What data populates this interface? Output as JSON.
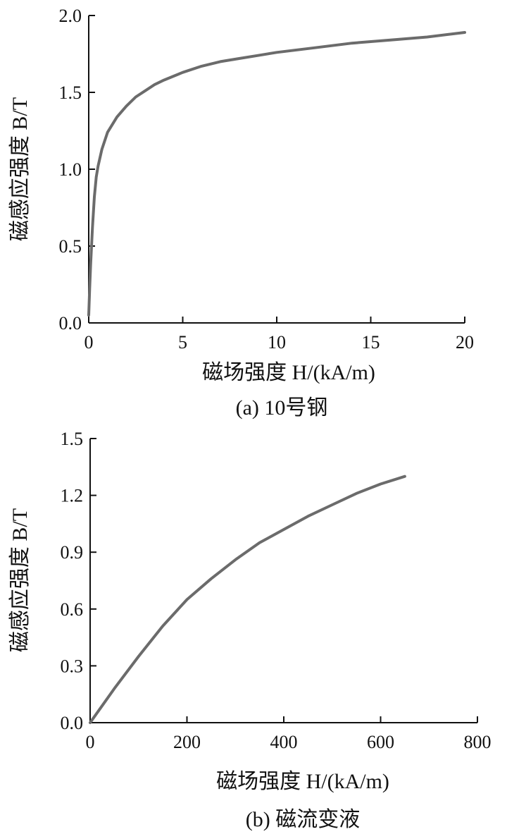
{
  "colors": {
    "curve": "#6b6b6b",
    "axis": "#111111"
  },
  "chart_data": [
    {
      "type": "line",
      "caption": "(a) 10号钢",
      "xlabel": "磁场强度 H/(kA/m)",
      "ylabel": "磁感应强度 B/T",
      "xlim": [
        0,
        20
      ],
      "ylim": [
        0,
        2.0
      ],
      "xticks": [
        "0",
        "5",
        "10",
        "15",
        "20"
      ],
      "yticks": [
        "0.0",
        "0.5",
        "1.0",
        "1.5",
        "2.0"
      ],
      "grid": false,
      "legend": "none",
      "series": [
        {
          "x": [
            0,
            0.05,
            0.1,
            0.2,
            0.3,
            0.4,
            0.5,
            0.7,
            1.0,
            1.5,
            2.0,
            2.5,
            3.0,
            3.5,
            4.0,
            5.0,
            6.0,
            7.0,
            8.0,
            9.0,
            10.0,
            12.0,
            14.0,
            16.0,
            18.0,
            20.0
          ],
          "y": [
            0.05,
            0.22,
            0.38,
            0.62,
            0.82,
            0.95,
            1.02,
            1.13,
            1.24,
            1.34,
            1.41,
            1.47,
            1.51,
            1.55,
            1.58,
            1.63,
            1.67,
            1.7,
            1.72,
            1.74,
            1.76,
            1.79,
            1.82,
            1.84,
            1.86,
            1.89
          ]
        }
      ]
    },
    {
      "type": "line",
      "caption": "(b) 磁流变液",
      "xlabel": "磁场强度 H/(kA/m)",
      "ylabel": "磁感应强度 B/T",
      "xlim": [
        0,
        800
      ],
      "ylim": [
        0,
        1.5
      ],
      "xticks": [
        "0",
        "200",
        "400",
        "600",
        "800"
      ],
      "yticks": [
        "0.0",
        "0.3",
        "0.6",
        "0.9",
        "1.2",
        "1.5"
      ],
      "grid": false,
      "legend": "none",
      "series": [
        {
          "x": [
            0,
            25,
            50,
            100,
            150,
            200,
            250,
            300,
            350,
            400,
            450,
            500,
            550,
            600,
            650
          ],
          "y": [
            0,
            0.09,
            0.18,
            0.35,
            0.51,
            0.65,
            0.76,
            0.86,
            0.95,
            1.02,
            1.09,
            1.15,
            1.21,
            1.26,
            1.3
          ]
        }
      ]
    }
  ]
}
